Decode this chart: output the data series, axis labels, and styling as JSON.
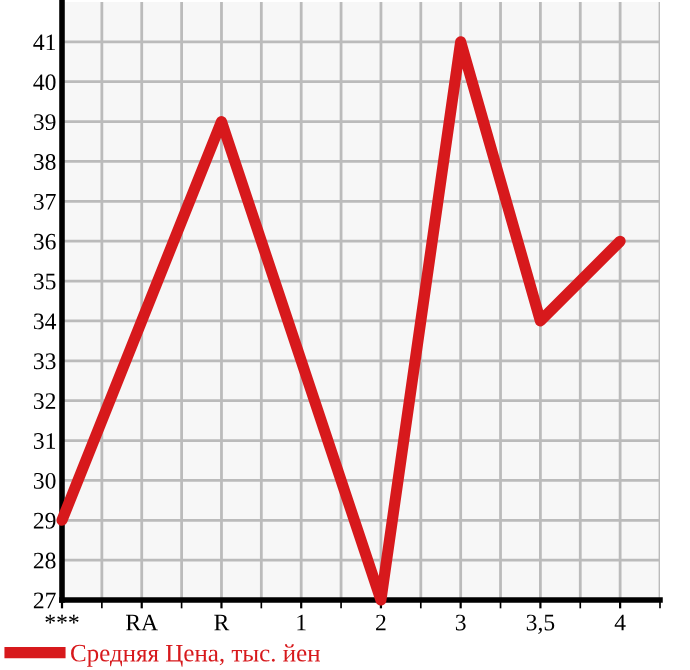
{
  "chart_data": {
    "type": "line",
    "categories": [
      "***",
      "RA",
      "R",
      "1",
      "2",
      "3",
      "3,5",
      "4"
    ],
    "series": [
      {
        "name": "Средняя Цена, тыс. йен",
        "color": "#d7191c",
        "values": [
          29,
          34,
          39,
          33,
          27,
          41,
          34,
          36
        ]
      }
    ],
    "ylim": [
      27,
      42
    ],
    "yticks": [
      27,
      28,
      29,
      30,
      31,
      32,
      33,
      34,
      35,
      36,
      37,
      38,
      39,
      40,
      41
    ],
    "grid": true,
    "legend": "bottom left",
    "marker": "none",
    "line_style": "solid"
  }
}
